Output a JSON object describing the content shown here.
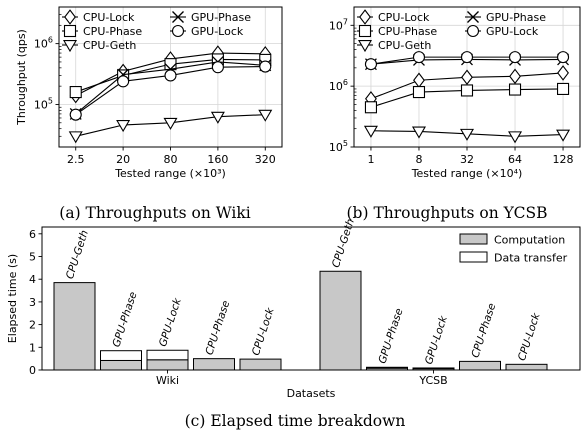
{
  "captions": {
    "a": "(a) Throughputs on Wiki",
    "b": "(b) Throughputs on YCSB",
    "c": "(c) Elapsed time breakdown"
  },
  "chart_data": [
    {
      "type": "line",
      "id": "a",
      "x": [
        "2.5",
        "20",
        "80",
        "160",
        "320"
      ],
      "xlabel": "Tested range (×10³)",
      "ylabel": "Throughput (qps)",
      "yscale": "log",
      "ylim": [
        20000,
        4000000
      ],
      "yticks": [
        {
          "value": 100000,
          "base": "10",
          "exp": "5"
        },
        {
          "value": 1000000,
          "base": "10",
          "exp": "6"
        }
      ],
      "grid": true,
      "legend": "top-left, two columns",
      "series": [
        {
          "name": "CPU-Lock",
          "marker": "diamond",
          "values": [
            140000,
            350000,
            560000,
            700000,
            680000
          ]
        },
        {
          "name": "CPU-Phase",
          "marker": "square",
          "values": [
            160000,
            300000,
            460000,
            550000,
            540000
          ]
        },
        {
          "name": "CPU-Geth",
          "marker": "triangle-down",
          "values": [
            30000,
            46000,
            50000,
            63000,
            68000
          ]
        },
        {
          "name": "GPU-Phase",
          "marker": "x",
          "values": [
            70000,
            310000,
            380000,
            500000,
            440000
          ]
        },
        {
          "name": "GPU-Lock",
          "marker": "circle",
          "values": [
            68000,
            240000,
            300000,
            410000,
            420000
          ]
        }
      ]
    },
    {
      "type": "line",
      "id": "b",
      "x": [
        "1",
        "8",
        "32",
        "64",
        "128"
      ],
      "xlabel": "Tested range (×10⁴)",
      "yscale": "log",
      "ylim": [
        100000,
        20000000
      ],
      "yticks": [
        {
          "value": 100000,
          "base": "10",
          "exp": "5"
        },
        {
          "value": 1000000,
          "base": "10",
          "exp": "6"
        },
        {
          "value": 10000000,
          "base": "10",
          "exp": "7"
        }
      ],
      "grid": true,
      "legend": "top-left, two columns",
      "series": [
        {
          "name": "CPU-Lock",
          "marker": "diamond",
          "values": [
            620000,
            1250000,
            1400000,
            1450000,
            1650000
          ]
        },
        {
          "name": "CPU-Phase",
          "marker": "square",
          "values": [
            450000,
            800000,
            850000,
            880000,
            900000
          ]
        },
        {
          "name": "CPU-Geth",
          "marker": "triangle-down",
          "values": [
            185000,
            180000,
            165000,
            150000,
            160000
          ]
        },
        {
          "name": "GPU-Phase",
          "marker": "x",
          "values": [
            2300000,
            2700000,
            2750000,
            2700000,
            2750000
          ]
        },
        {
          "name": "GPU-Lock",
          "marker": "circle",
          "values": [
            2300000,
            3000000,
            3000000,
            3000000,
            3000000
          ]
        }
      ]
    },
    {
      "type": "bar",
      "id": "c",
      "stacked": true,
      "xlabel": "Datasets",
      "ylabel": "Elapsed time (s)",
      "ylim": [
        0,
        6.3
      ],
      "yticks": [
        0,
        1,
        2,
        3,
        4,
        5,
        6
      ],
      "legend": "top-right",
      "stack_names": [
        "Computation",
        "Data transfer"
      ],
      "stack_colors": [
        "#c8c8c8",
        "#ffffff"
      ],
      "groups": [
        {
          "name": "Wiki",
          "bars": [
            {
              "label": "CPU-Geth",
              "computation": 3.85,
              "transfer": 0
            },
            {
              "label": "GPU-Phase",
              "computation": 0.42,
              "transfer": 0.43
            },
            {
              "label": "GPU-Lock",
              "computation": 0.45,
              "transfer": 0.42
            },
            {
              "label": "CPU-Phase",
              "computation": 0.5,
              "transfer": 0
            },
            {
              "label": "CPU-Lock",
              "computation": 0.48,
              "transfer": 0
            }
          ]
        },
        {
          "name": "YCSB",
          "bars": [
            {
              "label": "CPU-Geth",
              "computation": 4.35,
              "transfer": 0
            },
            {
              "label": "GPU-Phase",
              "computation": 0.08,
              "transfer": 0.04
            },
            {
              "label": "GPU-Lock",
              "computation": 0.06,
              "transfer": 0.03
            },
            {
              "label": "CPU-Phase",
              "computation": 0.38,
              "transfer": 0
            },
            {
              "label": "CPU-Lock",
              "computation": 0.25,
              "transfer": 0
            }
          ]
        }
      ]
    }
  ]
}
